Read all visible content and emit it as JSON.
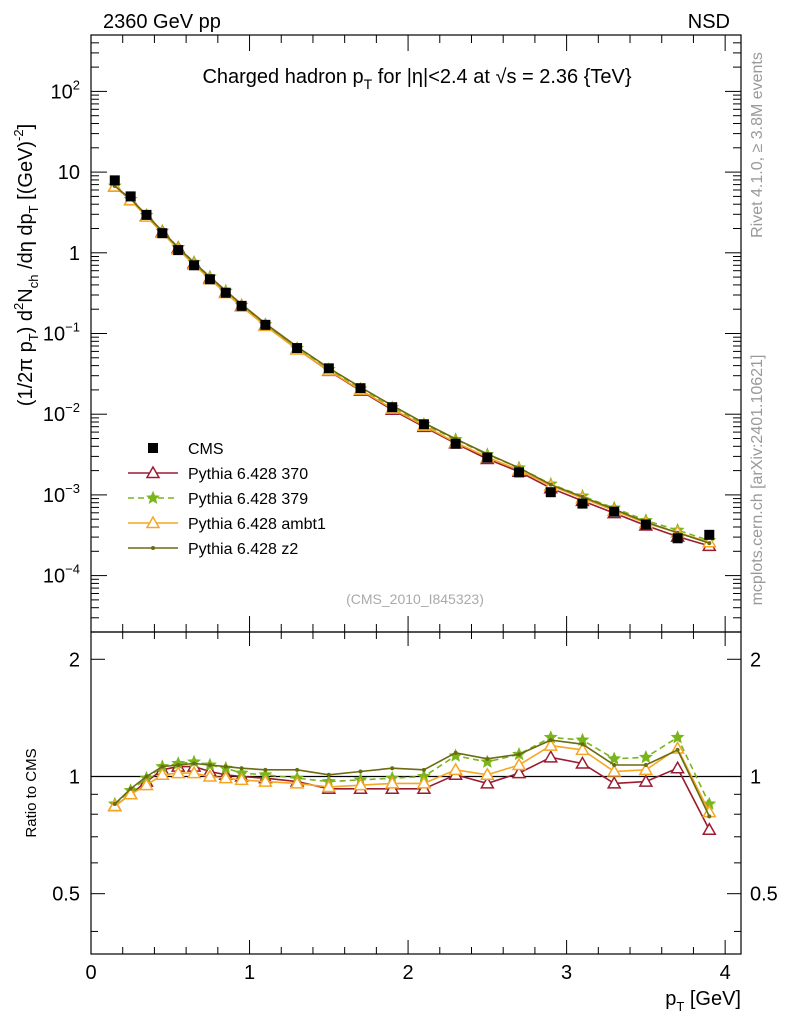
{
  "header": {
    "left": "2360 GeV pp",
    "right": "NSD"
  },
  "title": {
    "main": "Charged hadron p",
    "sub": "T",
    "rest": " for |η|<2.4 at √s = 2.36 {TeV}"
  },
  "side_labels": {
    "top": "Rivet 4.1.0, ≥ 3.8M events",
    "bottom": "mcplots.cern.ch [arXiv:2401.10621]"
  },
  "watermark": "(CMS_2010_I845323)",
  "chart_data": {
    "type": "scatter",
    "log_y": true,
    "xlim": [
      0,
      4.1
    ],
    "ylim": [
      2e-05,
      500
    ],
    "ratio_ylim": [
      0.35,
      2.35
    ],
    "x": [
      0.15,
      0.25,
      0.35,
      0.45,
      0.55,
      0.65,
      0.75,
      0.85,
      0.95,
      1.1,
      1.3,
      1.5,
      1.7,
      1.9,
      2.1,
      2.3,
      2.5,
      2.7,
      2.9,
      3.1,
      3.3,
      3.5,
      3.7,
      3.9
    ],
    "data": {
      "name": "CMS",
      "values": [
        7.9,
        5.0,
        2.95,
        1.75,
        1.08,
        0.7,
        0.47,
        0.32,
        0.22,
        0.128,
        0.066,
        0.037,
        0.021,
        0.0122,
        0.0075,
        0.0043,
        0.0029,
        0.0019,
        0.00108,
        0.00078,
        0.00062,
        0.00043,
        0.00029,
        0.00032
      ]
    },
    "series": [
      {
        "name": "Pythia 6.428 370",
        "color": "#9b1c31",
        "marker": "triangle-open",
        "dash": "solid",
        "ratio": [
          0.84,
          0.9,
          0.97,
          1.04,
          1.06,
          1.06,
          1.03,
          1.01,
          1.0,
          0.99,
          0.97,
          0.93,
          0.93,
          0.93,
          0.93,
          1.01,
          0.96,
          1.02,
          1.12,
          1.08,
          0.96,
          0.97,
          1.05,
          0.73
        ]
      },
      {
        "name": "Pythia 6.428 379",
        "color": "#7ab51d",
        "marker": "star",
        "dash": "dashed",
        "ratio": [
          0.85,
          0.92,
          0.99,
          1.06,
          1.08,
          1.09,
          1.07,
          1.05,
          1.02,
          1.01,
          0.99,
          0.97,
          0.98,
          0.99,
          1.0,
          1.13,
          1.09,
          1.14,
          1.26,
          1.24,
          1.11,
          1.12,
          1.26,
          0.85
        ]
      },
      {
        "name": "Pythia 6.428 ambt1",
        "color": "#f5a623",
        "marker": "triangle-open",
        "dash": "solid",
        "ratio": [
          0.84,
          0.9,
          0.95,
          1.01,
          1.02,
          1.02,
          1.0,
          0.99,
          0.98,
          0.97,
          0.96,
          0.94,
          0.95,
          0.96,
          0.96,
          1.04,
          1.01,
          1.07,
          1.2,
          1.17,
          1.03,
          1.04,
          1.18,
          0.81
        ]
      },
      {
        "name": "Pythia 6.428 z2",
        "color": "#6b6b10",
        "marker": "dot",
        "dash": "solid",
        "ratio": [
          0.85,
          0.93,
          1.0,
          1.06,
          1.07,
          1.08,
          1.07,
          1.06,
          1.05,
          1.04,
          1.04,
          1.01,
          1.03,
          1.05,
          1.04,
          1.15,
          1.11,
          1.14,
          1.24,
          1.21,
          1.07,
          1.07,
          1.17,
          0.79
        ]
      }
    ],
    "main_ylabel": "(1/2π p_T) d²N_ch /dη  dp_T [(GeV)⁻²]",
    "ratio_ylabel": "Ratio to CMS",
    "xlabel": "p_T [GeV]",
    "x_ticks": [
      "0",
      "1",
      "2",
      "3",
      "4"
    ],
    "y_ticks": [
      "10^-4",
      "10^-3",
      "10^-2",
      "10^-1",
      "1",
      "10",
      "10^2"
    ],
    "ratio_ticks": [
      "0.5",
      "1",
      "2"
    ]
  }
}
